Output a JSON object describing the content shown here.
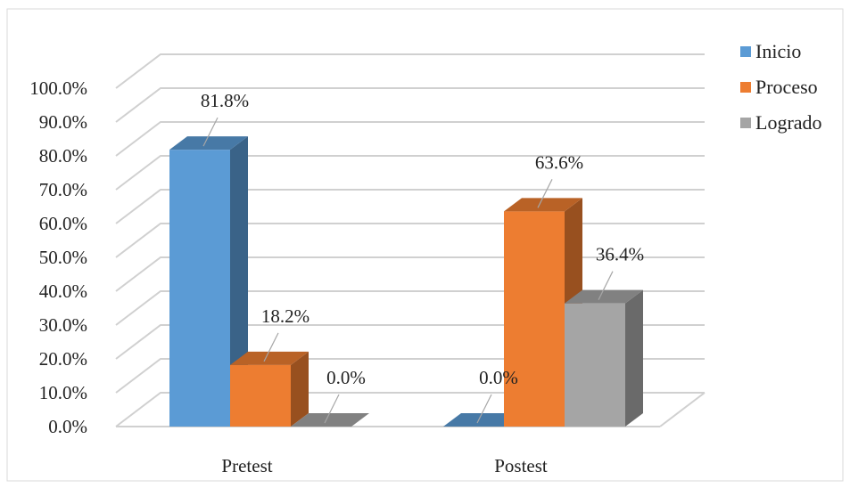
{
  "chart_data": {
    "type": "bar",
    "variant": "3d-clustered",
    "categories": [
      "Pretest",
      "Postest"
    ],
    "series": [
      {
        "name": "Inicio",
        "values": [
          81.8,
          0.0
        ],
        "color": "#5B9BD5"
      },
      {
        "name": "Proceso",
        "values": [
          18.2,
          63.6
        ],
        "color": "#ED7D31"
      },
      {
        "name": "Logrado",
        "values": [
          0.0,
          36.4
        ],
        "color": "#A5A5A5"
      }
    ],
    "data_labels": [
      [
        "81.8%",
        "0.0%"
      ],
      [
        "18.2%",
        "63.6%"
      ],
      [
        "0.0%",
        "36.4%"
      ]
    ],
    "yticks": [
      "0.0%",
      "10.0%",
      "20.0%",
      "30.0%",
      "40.0%",
      "50.0%",
      "60.0%",
      "70.0%",
      "80.0%",
      "90.0%",
      "100.0%"
    ],
    "ylim": [
      0,
      100
    ],
    "ytick_step": 10,
    "grid": true,
    "legend_position": "right",
    "title": "",
    "xlabel": "",
    "ylabel": ""
  }
}
